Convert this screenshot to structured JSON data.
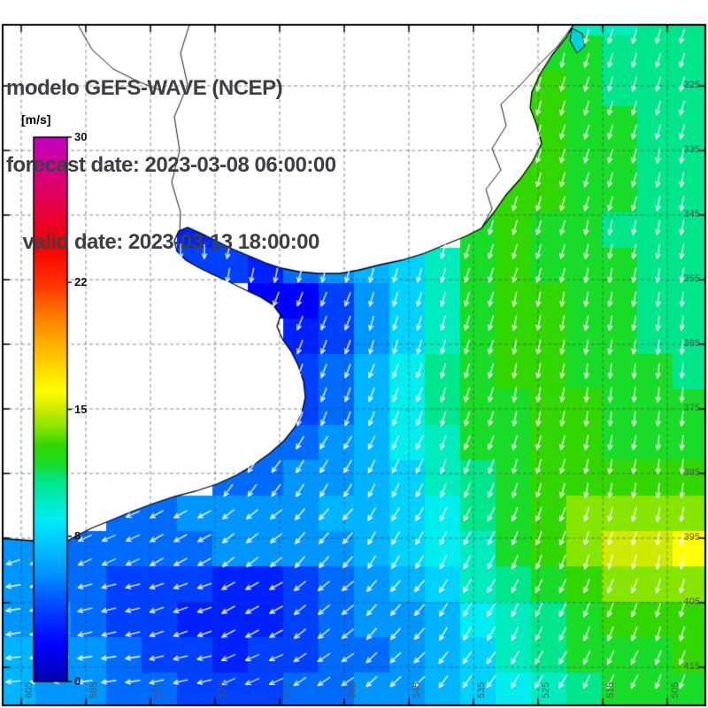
{
  "title": {
    "line1": "modelo GEFS-WAVE (NCEP)",
    "line2": "forecast date: 2023-03-08 06:00:00",
    "line3": "   valid date: 2023-03-13 18:00:00"
  },
  "colorbar": {
    "unit_label": "[m/s]",
    "min": 0,
    "max": 30,
    "ticks": [
      {
        "value": 30,
        "label": "30"
      },
      {
        "value": 22,
        "label": "22"
      },
      {
        "value": 15,
        "label": "15"
      },
      {
        "value": 8,
        "label": "8"
      },
      {
        "value": 0,
        "label": "0"
      }
    ]
  },
  "map": {
    "right_axis_labels": [
      "325",
      "335",
      "345",
      "355",
      "365",
      "375",
      "385",
      "395",
      "405",
      "415"
    ],
    "bottom_axis_labels": [
      "605",
      "595",
      "585",
      "575",
      "565",
      "555",
      "545",
      "535",
      "525",
      "515",
      "505"
    ]
  },
  "chart_data": {
    "type": "heatmap",
    "title": "modelo GEFS-WAVE (NCEP)",
    "units": "m/s",
    "value_range": [
      0,
      30
    ],
    "cell_size_px": 40,
    "colormap_stops": [
      [
        0,
        "#0000aa"
      ],
      [
        2,
        "#0000ff"
      ],
      [
        4,
        "#0041ff"
      ],
      [
        6,
        "#0096ff"
      ],
      [
        8,
        "#00d2ff"
      ],
      [
        9,
        "#00eef0"
      ],
      [
        10,
        "#00ebbe"
      ],
      [
        11,
        "#00e68c"
      ],
      [
        12,
        "#19dc28"
      ],
      [
        13,
        "#32d700"
      ],
      [
        14,
        "#87e600"
      ],
      [
        15,
        "#cdeb00"
      ],
      [
        16,
        "#ffff00"
      ],
      [
        18,
        "#ffc300"
      ],
      [
        20,
        "#ff8200"
      ],
      [
        22,
        "#ff3000"
      ],
      [
        24,
        "#f50000"
      ],
      [
        27,
        "#e1005f"
      ],
      [
        30,
        "#c300c3"
      ]
    ],
    "speed_grid": [
      [
        null,
        null,
        null,
        null,
        null,
        null,
        null,
        null,
        null,
        null,
        null,
        null,
        null,
        null,
        null,
        null,
        10,
        10,
        11,
        11
      ],
      [
        null,
        null,
        null,
        null,
        null,
        null,
        null,
        null,
        null,
        null,
        null,
        null,
        null,
        null,
        null,
        12,
        12,
        11,
        11,
        11
      ],
      [
        null,
        null,
        null,
        null,
        null,
        null,
        null,
        null,
        null,
        null,
        null,
        null,
        null,
        null,
        null,
        13,
        12,
        11,
        11,
        11
      ],
      [
        null,
        null,
        null,
        null,
        null,
        null,
        null,
        null,
        null,
        null,
        null,
        null,
        null,
        null,
        null,
        13,
        12,
        12,
        11,
        11
      ],
      [
        null,
        null,
        null,
        null,
        null,
        null,
        null,
        null,
        null,
        null,
        null,
        null,
        null,
        null,
        13,
        13,
        12,
        12,
        11,
        11
      ],
      [
        null,
        null,
        null,
        null,
        null,
        null,
        null,
        null,
        null,
        null,
        null,
        null,
        null,
        12,
        13,
        13,
        12,
        12,
        11,
        11
      ],
      [
        null,
        null,
        null,
        null,
        null,
        3,
        4,
        null,
        null,
        null,
        null,
        null,
        null,
        12,
        13,
        12,
        12,
        11,
        11,
        11
      ],
      [
        null,
        null,
        null,
        null,
        null,
        4,
        4,
        3,
        5,
        6,
        7,
        8,
        10,
        12,
        13,
        12,
        12,
        12,
        11,
        11
      ],
      [
        null,
        null,
        null,
        null,
        null,
        null,
        null,
        2,
        2,
        4,
        6,
        8,
        10,
        12,
        13,
        13,
        12,
        12,
        11,
        11
      ],
      [
        null,
        null,
        null,
        null,
        null,
        null,
        null,
        null,
        3,
        4,
        6,
        8,
        10,
        12,
        13,
        13,
        12,
        12,
        11,
        11
      ],
      [
        null,
        null,
        null,
        null,
        null,
        null,
        null,
        null,
        4,
        5,
        7,
        9,
        11,
        12,
        13,
        13,
        12,
        12,
        12,
        11
      ],
      [
        null,
        null,
        null,
        null,
        null,
        null,
        null,
        null,
        4,
        5,
        7,
        9,
        11,
        12,
        12,
        13,
        13,
        12,
        12,
        12
      ],
      [
        null,
        null,
        null,
        null,
        null,
        null,
        null,
        5,
        5,
        6,
        7,
        9,
        10,
        12,
        12,
        13,
        13,
        12,
        12,
        12
      ],
      [
        null,
        null,
        null,
        null,
        null,
        null,
        5,
        5,
        6,
        6,
        7,
        8,
        10,
        11,
        12,
        13,
        13,
        13,
        13,
        13
      ],
      [
        null,
        null,
        null,
        5,
        5,
        6,
        6,
        6,
        6,
        7,
        7,
        8,
        9,
        11,
        12,
        13,
        14,
        14,
        14,
        14
      ],
      [
        6,
        5,
        5,
        5,
        5,
        5,
        6,
        6,
        6,
        6,
        7,
        8,
        9,
        10,
        12,
        13,
        14,
        15,
        15,
        16
      ],
      [
        6,
        5,
        5,
        4,
        4,
        4,
        3,
        3,
        4,
        5,
        6,
        7,
        8,
        10,
        11,
        12,
        13,
        14,
        14,
        14
      ],
      [
        6,
        6,
        5,
        4,
        4,
        3,
        3,
        3,
        4,
        5,
        6,
        6,
        7,
        9,
        10,
        11,
        12,
        13,
        13,
        13
      ],
      [
        7,
        6,
        6,
        5,
        4,
        4,
        3,
        4,
        4,
        5,
        5,
        6,
        7,
        8,
        10,
        11,
        12,
        12,
        12,
        13
      ],
      [
        7,
        6,
        6,
        5,
        5,
        4,
        4,
        4,
        5,
        5,
        6,
        6,
        7,
        8,
        9,
        10,
        11,
        12,
        12,
        12
      ]
    ],
    "direction_grid_deg": [
      [
        180,
        180,
        180,
        180,
        180,
        180,
        185,
        190,
        195,
        195
      ],
      [
        180,
        180,
        180,
        180,
        180,
        185,
        190,
        195,
        195,
        195
      ],
      [
        180,
        180,
        180,
        180,
        185,
        190,
        195,
        195,
        195,
        190
      ],
      [
        180,
        180,
        180,
        190,
        195,
        195,
        195,
        195,
        190,
        190
      ],
      [
        200,
        200,
        200,
        200,
        200,
        195,
        195,
        190,
        190,
        185
      ],
      [
        210,
        210,
        210,
        205,
        200,
        200,
        195,
        190,
        185,
        185
      ],
      [
        230,
        225,
        220,
        215,
        210,
        205,
        200,
        195,
        190,
        185
      ],
      [
        250,
        245,
        240,
        230,
        220,
        210,
        205,
        200,
        195,
        190
      ],
      [
        260,
        255,
        250,
        240,
        230,
        220,
        210,
        205,
        200,
        195
      ],
      [
        265,
        260,
        255,
        245,
        235,
        225,
        215,
        210,
        205,
        200
      ]
    ],
    "coastline_polygon": [
      [
        -5,
        -5
      ],
      [
        656,
        -5
      ],
      [
        648,
        28
      ],
      [
        640,
        42
      ],
      [
        624,
        62
      ],
      [
        610,
        84
      ],
      [
        601,
        104
      ],
      [
        599,
        122
      ],
      [
        606,
        140
      ],
      [
        612,
        162
      ],
      [
        602,
        182
      ],
      [
        588,
        202
      ],
      [
        572,
        220
      ],
      [
        558,
        240
      ],
      [
        544,
        258
      ],
      [
        526,
        267
      ],
      [
        504,
        276
      ],
      [
        480,
        286
      ],
      [
        454,
        294
      ],
      [
        430,
        299
      ],
      [
        406,
        305
      ],
      [
        384,
        309
      ],
      [
        360,
        309
      ],
      [
        338,
        307
      ],
      [
        318,
        303
      ],
      [
        300,
        297
      ],
      [
        281,
        289
      ],
      [
        262,
        281
      ],
      [
        244,
        272
      ],
      [
        228,
        264
      ],
      [
        212,
        257
      ],
      [
        202,
        261
      ],
      [
        197,
        272
      ],
      [
        200,
        284
      ],
      [
        210,
        294
      ],
      [
        224,
        302
      ],
      [
        240,
        310
      ],
      [
        258,
        318
      ],
      [
        276,
        327
      ],
      [
        295,
        336
      ],
      [
        309,
        345
      ],
      [
        317,
        356
      ],
      [
        313,
        369
      ],
      [
        319,
        383
      ],
      [
        329,
        397
      ],
      [
        337,
        413
      ],
      [
        343,
        431
      ],
      [
        345,
        449
      ],
      [
        341,
        467
      ],
      [
        333,
        483
      ],
      [
        321,
        498
      ],
      [
        305,
        512
      ],
      [
        287,
        525
      ],
      [
        267,
        537
      ],
      [
        245,
        547
      ],
      [
        221,
        555
      ],
      [
        197,
        561
      ],
      [
        173,
        569
      ],
      [
        149,
        578
      ],
      [
        125,
        588
      ],
      [
        103,
        597
      ],
      [
        87,
        605
      ],
      [
        73,
        613
      ],
      [
        48,
        612
      ],
      [
        24,
        610
      ],
      [
        -5,
        608
      ]
    ],
    "interior_borders": [
      [
        [
          648,
          28
        ],
        [
          630,
          52
        ],
        [
          610,
          72
        ],
        [
          588,
          96
        ],
        [
          566,
          118
        ],
        [
          572,
          142
        ],
        [
          556,
          168
        ],
        [
          566,
          192
        ],
        [
          549,
          214
        ],
        [
          556,
          236
        ],
        [
          544,
          258
        ]
      ],
      [
        [
          214,
          28
        ],
        [
          204,
          60
        ],
        [
          212,
          96
        ],
        [
          197,
          132
        ],
        [
          203,
          170
        ],
        [
          194,
          206
        ],
        [
          204,
          240
        ],
        [
          203,
          262
        ]
      ],
      [
        [
          88,
          28
        ],
        [
          104,
          56
        ],
        [
          128,
          78
        ],
        [
          156,
          92
        ],
        [
          186,
          104
        ]
      ]
    ],
    "lagoons": [
      {
        "color": "#00d2dc",
        "points": [
          [
            646,
            32
          ],
          [
            658,
            38
          ],
          [
            661,
            52
          ],
          [
            652,
            60
          ],
          [
            644,
            46
          ]
        ]
      }
    ]
  }
}
